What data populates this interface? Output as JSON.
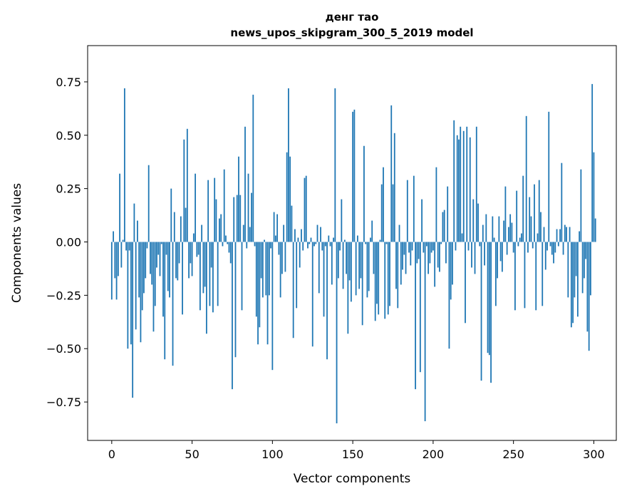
{
  "chart_data": {
    "type": "bar",
    "title": "денг тао",
    "subtitle": "news_upos_skipgram_300_5_2019 model",
    "xlabel": "Vector components",
    "ylabel": "Components values",
    "xlim": [
      -15,
      314
    ],
    "ylim": [
      -0.93,
      0.92
    ],
    "xticks": [
      0,
      50,
      100,
      150,
      200,
      250,
      300
    ],
    "yticks": [
      -0.75,
      -0.5,
      -0.25,
      0.0,
      0.25,
      0.5,
      0.75
    ],
    "xtick_labels": [
      "0",
      "50",
      "100",
      "150",
      "200",
      "250",
      "300"
    ],
    "ytick_labels": [
      "−0.75",
      "−0.50",
      "−0.25",
      "0.00",
      "0.25",
      "0.50",
      "0.75"
    ],
    "grid": false,
    "bar_color": "#1f77b4",
    "values": [
      -0.27,
      0.05,
      -0.17,
      -0.27,
      -0.16,
      0.32,
      -0.12,
      0.01,
      0.72,
      -0.04,
      -0.5,
      -0.04,
      -0.48,
      -0.73,
      0.18,
      -0.41,
      0.1,
      -0.26,
      -0.47,
      -0.32,
      -0.24,
      -0.17,
      -0.03,
      0.36,
      -0.15,
      -0.2,
      -0.42,
      -0.3,
      -0.12,
      -0.06,
      -0.16,
      -0.01,
      -0.35,
      -0.55,
      -0.06,
      -0.23,
      -0.26,
      0.25,
      -0.58,
      0.14,
      -0.17,
      -0.18,
      -0.1,
      0.12,
      -0.34,
      0.48,
      0.16,
      0.53,
      -0.17,
      -0.1,
      -0.16,
      0.04,
      0.32,
      -0.07,
      -0.06,
      -0.32,
      0.08,
      -0.24,
      -0.21,
      -0.43,
      0.29,
      -0.3,
      -0.12,
      -0.33,
      0.3,
      0.2,
      -0.3,
      0.11,
      0.13,
      -0.02,
      0.34,
      0.03,
      -0.01,
      -0.05,
      -0.1,
      -0.69,
      0.21,
      -0.54,
      0.22,
      0.4,
      0.22,
      -0.32,
      0.08,
      0.54,
      -0.03,
      0.32,
      0.07,
      0.23,
      0.69,
      -0.02,
      -0.35,
      -0.48,
      -0.4,
      -0.17,
      -0.26,
      0.01,
      -0.25,
      -0.48,
      -0.25,
      -0.03,
      -0.6,
      0.14,
      0.03,
      0.13,
      -0.06,
      -0.26,
      -0.15,
      0.08,
      -0.14,
      0.42,
      0.72,
      0.4,
      0.17,
      -0.45,
      0.06,
      -0.31,
      0.02,
      -0.12,
      0.06,
      -0.04,
      0.3,
      0.31,
      -0.03,
      -0.01,
      0.02,
      -0.49,
      -0.02,
      -0.01,
      0.08,
      -0.24,
      0.07,
      -0.04,
      -0.35,
      -0.02,
      -0.55,
      0.03,
      -0.02,
      -0.2,
      0.02,
      0.72,
      -0.85,
      -0.17,
      -0.04,
      0.2,
      -0.22,
      0.01,
      -0.15,
      -0.43,
      -0.18,
      -0.28,
      0.61,
      0.62,
      -0.25,
      0.03,
      -0.22,
      -0.17,
      -0.39,
      0.45,
      -0.01,
      -0.26,
      -0.23,
      0.02,
      0.1,
      -0.15,
      -0.37,
      -0.29,
      -0.34,
      0.01,
      0.27,
      0.35,
      -0.36,
      -0.01,
      -0.34,
      -0.3,
      0.64,
      0.27,
      0.51,
      -0.22,
      -0.31,
      0.08,
      -0.2,
      -0.13,
      -0.06,
      -0.15,
      0.29,
      -0.05,
      -0.11,
      -0.04,
      0.31,
      -0.69,
      -0.1,
      -0.08,
      -0.61,
      0.2,
      -0.05,
      -0.84,
      -0.02,
      -0.15,
      -0.1,
      -0.05,
      -0.04,
      -0.21,
      0.35,
      -0.12,
      -0.14,
      -0.01,
      0.14,
      0.15,
      -0.1,
      0.26,
      -0.5,
      -0.27,
      -0.2,
      0.57,
      -0.04,
      0.5,
      0.48,
      0.54,
      0.04,
      0.52,
      -0.38,
      0.54,
      -0.04,
      0.49,
      -0.12,
      0.2,
      -0.15,
      0.54,
      0.18,
      -0.02,
      -0.65,
      0.08,
      -0.11,
      0.13,
      -0.52,
      -0.53,
      -0.66,
      0.12,
      0.02,
      -0.3,
      -0.17,
      0.12,
      -0.09,
      -0.14,
      0.1,
      0.26,
      -0.06,
      0.07,
      0.13,
      0.09,
      -0.05,
      -0.32,
      0.24,
      -0.02,
      0.02,
      0.04,
      0.31,
      -0.31,
      0.59,
      -0.05,
      0.21,
      0.12,
      -0.03,
      0.27,
      -0.32,
      0.04,
      0.29,
      0.14,
      -0.3,
      0.07,
      -0.13,
      -0.04,
      0.61,
      -0.02,
      -0.06,
      -0.1,
      -0.05,
      0.06,
      -0.02,
      0.06,
      0.37,
      -0.06,
      0.08,
      0.07,
      -0.26,
      0.07,
      -0.4,
      -0.38,
      -0.26,
      -0.16,
      -0.35,
      0.05,
      0.34,
      -0.24,
      -0.17,
      -0.08,
      -0.42,
      -0.51,
      -0.25,
      0.74,
      0.42,
      0.11
    ]
  }
}
